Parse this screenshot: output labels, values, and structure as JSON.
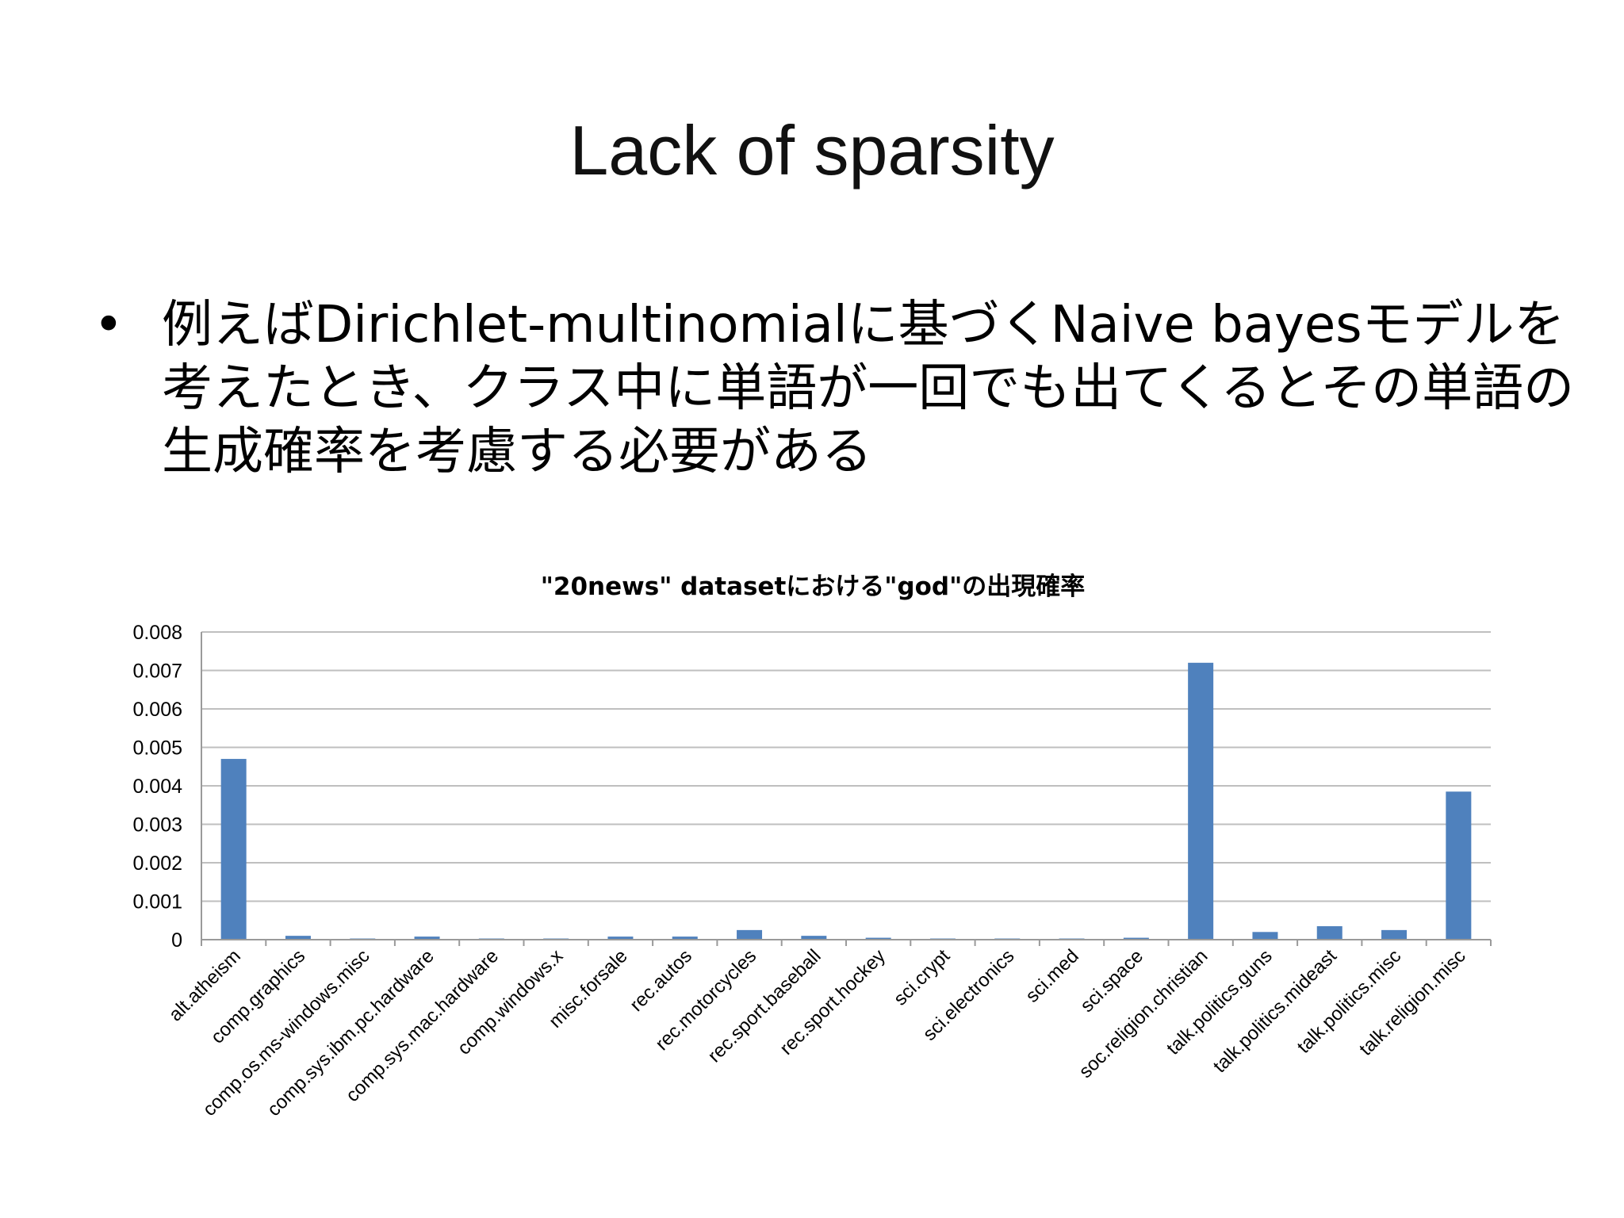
{
  "slide": {
    "title": "Lack of sparsity",
    "bullet": "例えばDirichlet-multinomialに基づくNaive bayesモデルを考えたとき、クラス中に単語が一回でも出てくるとその単語の生成確率を考慮する必要がある"
  },
  "colors": {
    "bar": "#4f81bd",
    "grid": "#bfbfbf",
    "axis": "#9a9a9a",
    "text": "#000000"
  },
  "chart_data": {
    "type": "bar",
    "title": "\"20news\" datasetにおける\"god\"の出現確率",
    "xlabel": "",
    "ylabel": "",
    "ylim": [
      0,
      0.008
    ],
    "grid": true,
    "legend": "none",
    "yticks": [
      "0",
      "0.001",
      "0.002",
      "0.003",
      "0.004",
      "0.005",
      "0.006",
      "0.007",
      "0.008"
    ],
    "categories": [
      "alt.atheism",
      "comp.graphics",
      "comp.os.ms-windows.misc",
      "comp.sys.ibm.pc.hardware",
      "comp.sys.mac.hardware",
      "comp.windows.x",
      "misc.forsale",
      "rec.autos",
      "rec.motorcycles",
      "rec.sport.baseball",
      "rec.sport.hockey",
      "sci.crypt",
      "sci.electronics",
      "sci.med",
      "sci.space",
      "soc.religion.christian",
      "talk.politics.guns",
      "talk.politics.mideast",
      "talk.politics.misc",
      "talk.religion.misc"
    ],
    "values": [
      0.0047,
      0.0001,
      3e-05,
      8e-05,
      3e-05,
      3e-05,
      8e-05,
      8e-05,
      0.00025,
      0.0001,
      5e-05,
      3e-05,
      3e-05,
      3e-05,
      5e-05,
      0.0072,
      0.0002,
      0.00035,
      0.00025,
      0.00385
    ]
  }
}
